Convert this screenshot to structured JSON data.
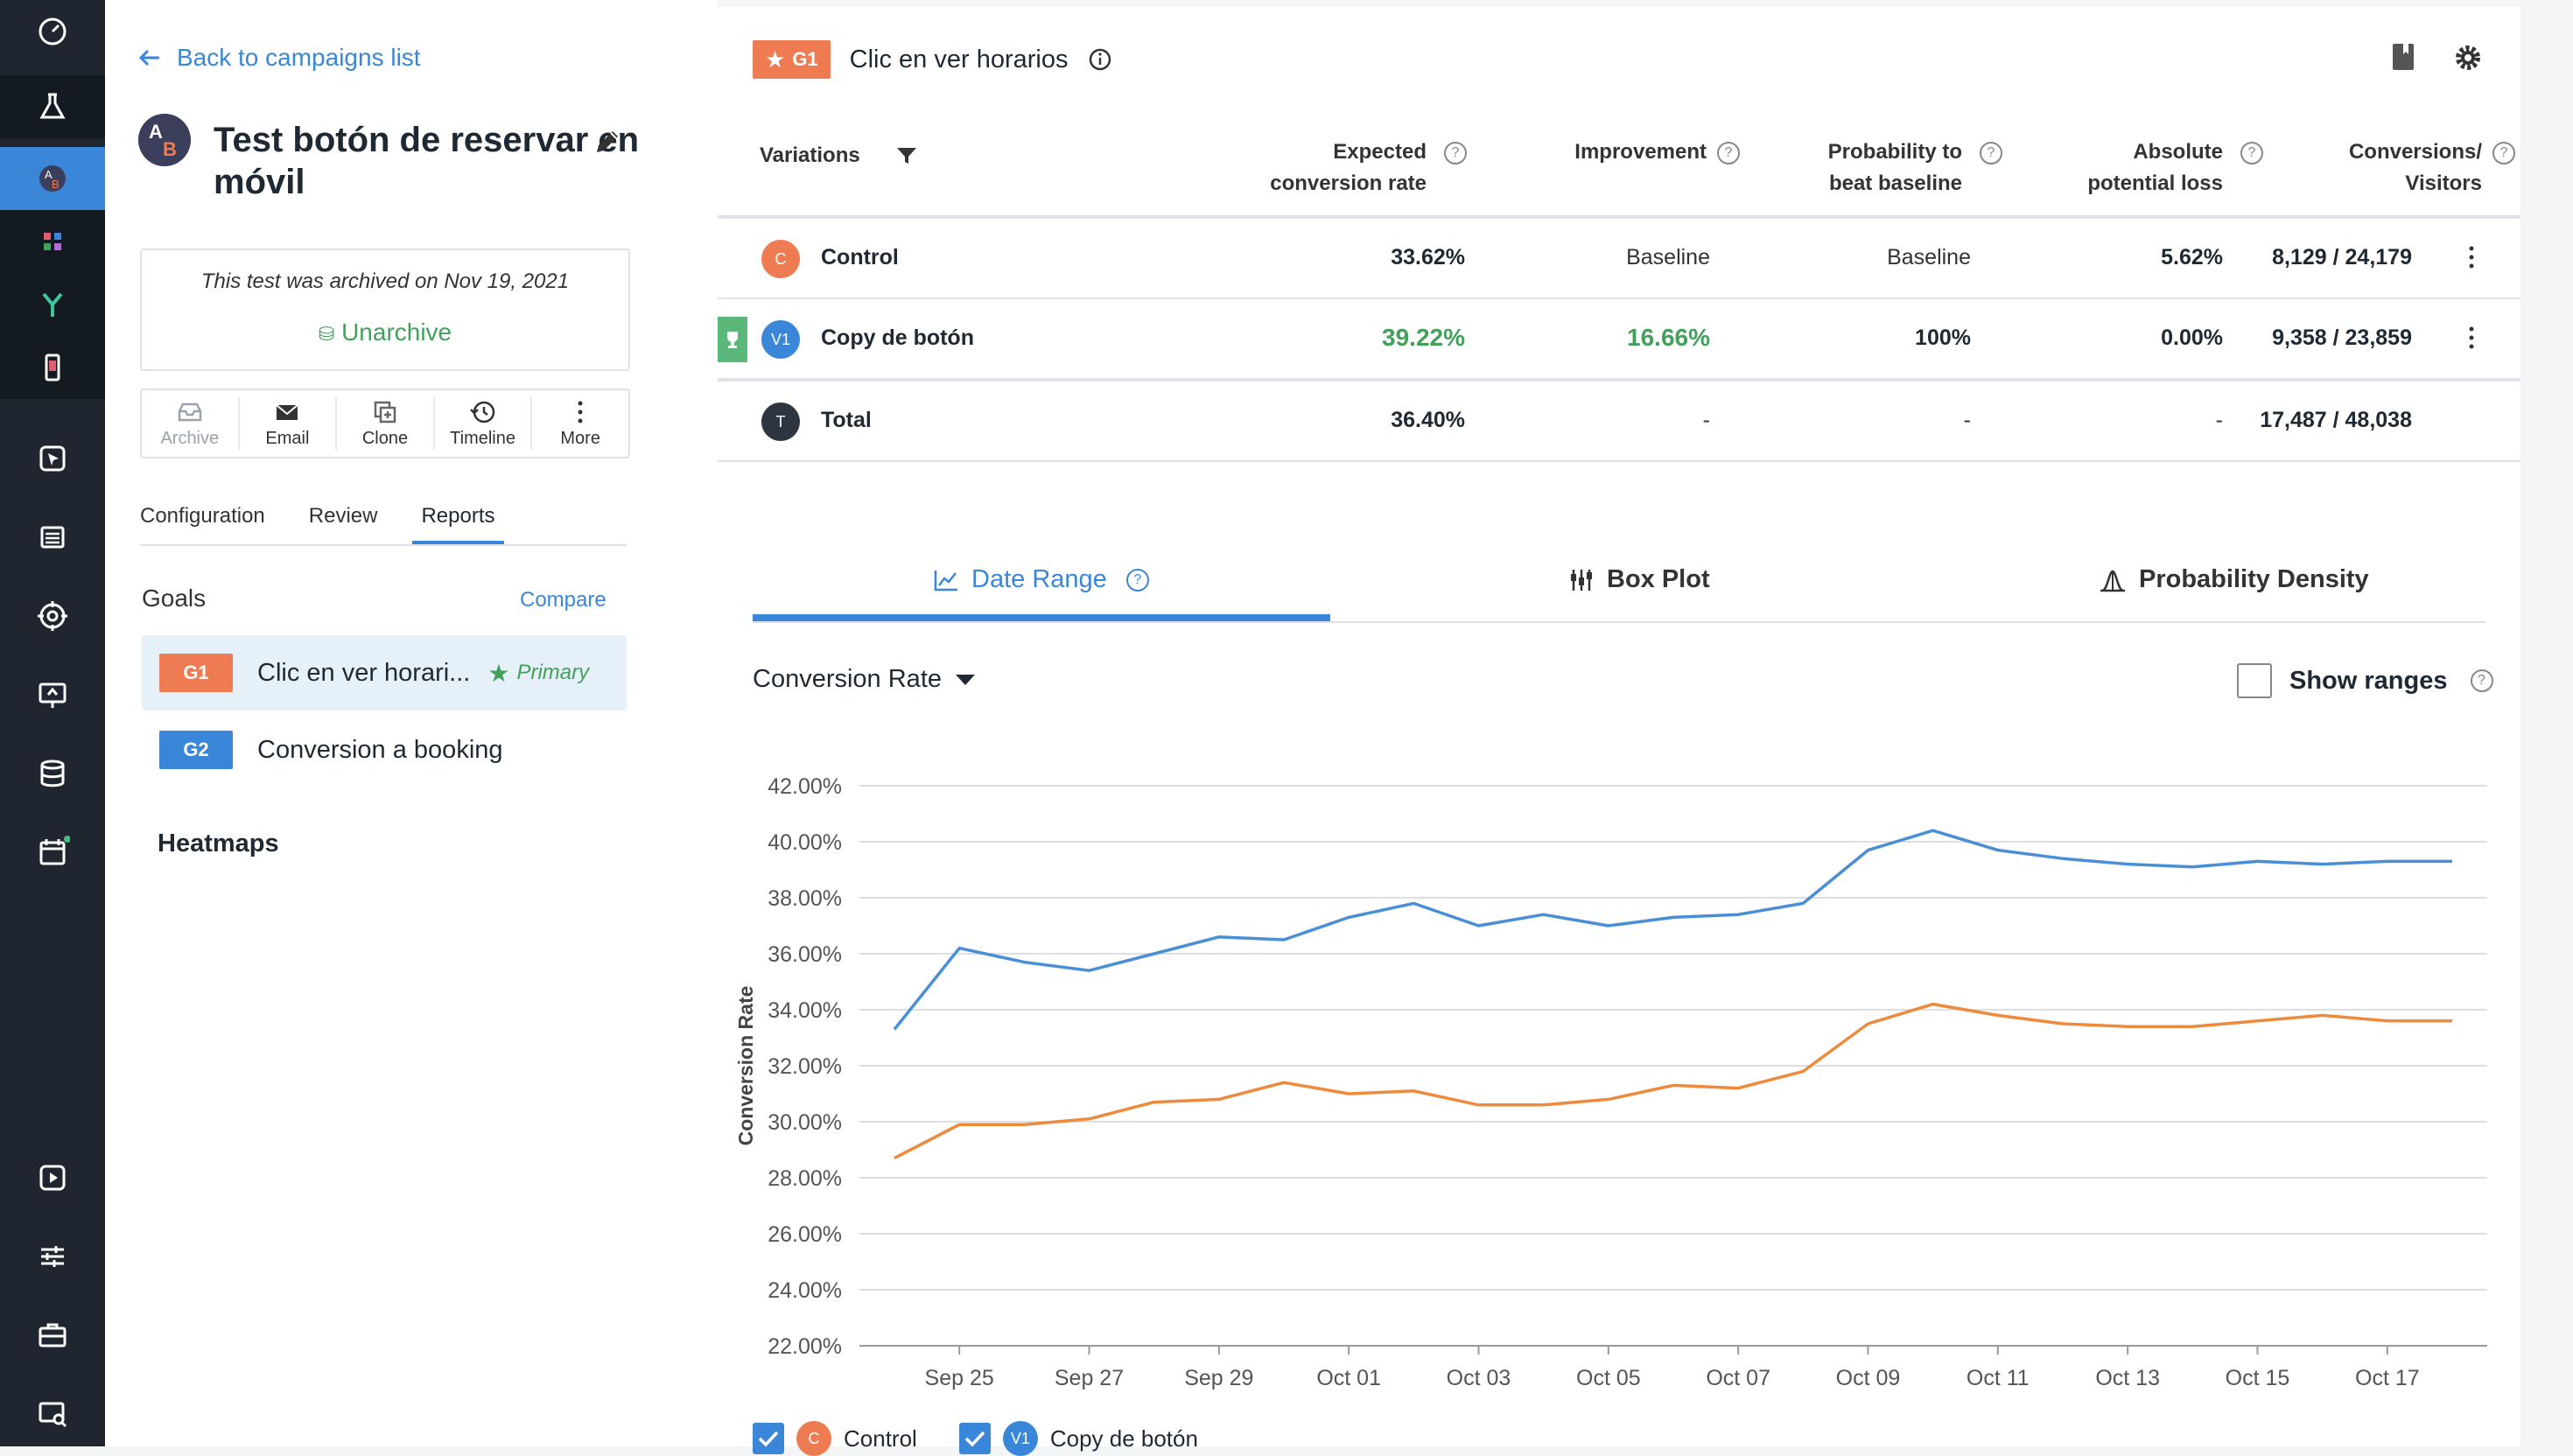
{
  "sidebar": {
    "icons": [
      "dashboard-icon",
      "flask-icon",
      "ab-test-icon",
      "apps-icon",
      "funnel-icon",
      "mobile-icon",
      "cursor-icon",
      "list-icon",
      "target-icon",
      "screen-icon",
      "database-icon",
      "calendar-icon",
      "play-icon",
      "sliders-icon",
      "briefcase-icon",
      "screen-search-icon"
    ]
  },
  "left": {
    "back_label": "Back to campaigns list",
    "campaign_title": "Test botón de reservar en móvil",
    "archived_text": "This test was archived on Nov 19, 2021",
    "unarchive_label": "Unarchive",
    "actions": [
      "Archive",
      "Email",
      "Clone",
      "Timeline",
      "More"
    ],
    "tabs": [
      "Configuration",
      "Review",
      "Reports"
    ],
    "goals_label": "Goals",
    "compare_label": "Compare",
    "goals": [
      {
        "badge": "G1",
        "name": "Clic en ver horari...",
        "primary": "Primary",
        "color": "#ee7b52"
      },
      {
        "badge": "G2",
        "name": "Conversion a booking",
        "color": "#3a86d9"
      }
    ],
    "heatmaps_label": "Heatmaps"
  },
  "main": {
    "goal_badge": "G1",
    "goal_title": "Clic en ver horarios",
    "headers": {
      "variations": "Variations",
      "expected_1": "Expected",
      "expected_2": "conversion rate",
      "improvement": "Improvement",
      "prob_1": "Probability to",
      "prob_2": "beat baseline",
      "loss_1": "Absolute",
      "loss_2": "potential loss",
      "conv_1": "Conversions/",
      "conv_2": "Visitors"
    },
    "rows": [
      {
        "badge": "C",
        "name": "Control",
        "expected": "33.62%",
        "improvement": "Baseline",
        "probability": "Baseline",
        "loss": "5.62%",
        "conversions": "8,129 / 24,179",
        "color": "#ee7b52"
      },
      {
        "badge": "V1",
        "name": "Copy de botón",
        "expected": "39.22%",
        "improvement": "16.66%",
        "probability": "100%",
        "loss": "0.00%",
        "conversions": "9,358 / 23,859",
        "color": "#3a86d9"
      },
      {
        "badge": "T",
        "name": "Total",
        "expected": "36.40%",
        "improvement": "-",
        "probability": "-",
        "loss": "-",
        "conversions": "17,487 / 48,038",
        "color": "#2d3640"
      }
    ],
    "tabs": [
      "Date Range",
      "Box Plot",
      "Probability Density"
    ],
    "metric_label": "Conversion Rate",
    "show_ranges_label": "Show ranges",
    "legend": [
      {
        "badge": "C",
        "name": "Control"
      },
      {
        "badge": "V1",
        "name": "Copy de botón"
      }
    ]
  },
  "chart_data": {
    "type": "line",
    "ylabel": "Conversion Rate",
    "ylim": [
      22,
      42
    ],
    "yticks": [
      "42.00%",
      "40.00%",
      "38.00%",
      "36.00%",
      "34.00%",
      "32.00%",
      "30.00%",
      "28.00%",
      "26.00%",
      "24.00%",
      "22.00%"
    ],
    "x": [
      "Sep 24",
      "Sep 25",
      "Sep 26",
      "Sep 27",
      "Sep 28",
      "Sep 29",
      "Sep 30",
      "Oct 01",
      "Oct 02",
      "Oct 03",
      "Oct 04",
      "Oct 05",
      "Oct 06",
      "Oct 07",
      "Oct 08",
      "Oct 09",
      "Oct 10",
      "Oct 11",
      "Oct 12",
      "Oct 13",
      "Oct 14",
      "Oct 15",
      "Oct 16",
      "Oct 17",
      "Oct 18"
    ],
    "xticks": [
      "Sep 25",
      "Sep 27",
      "Sep 29",
      "Oct 01",
      "Oct 03",
      "Oct 05",
      "Oct 07",
      "Oct 09",
      "Oct 11",
      "Oct 13",
      "Oct 15",
      "Oct 17"
    ],
    "series": [
      {
        "name": "Copy de botón",
        "color": "#4a8fd6",
        "values": [
          33.3,
          36.2,
          35.7,
          35.4,
          36.0,
          36.6,
          36.5,
          37.3,
          37.8,
          37.0,
          37.4,
          37.0,
          37.3,
          37.4,
          37.8,
          39.7,
          40.4,
          39.7,
          39.4,
          39.2,
          39.1,
          39.3,
          39.2,
          39.3,
          39.3
        ]
      },
      {
        "name": "Control",
        "color": "#ee8a3c",
        "values": [
          28.7,
          29.9,
          29.9,
          30.1,
          30.7,
          30.8,
          31.4,
          31.0,
          31.1,
          30.6,
          30.6,
          30.8,
          31.3,
          31.2,
          31.8,
          33.5,
          34.2,
          33.8,
          33.5,
          33.4,
          33.4,
          33.6,
          33.8,
          33.6,
          33.6
        ]
      }
    ],
    "grid": true
  }
}
